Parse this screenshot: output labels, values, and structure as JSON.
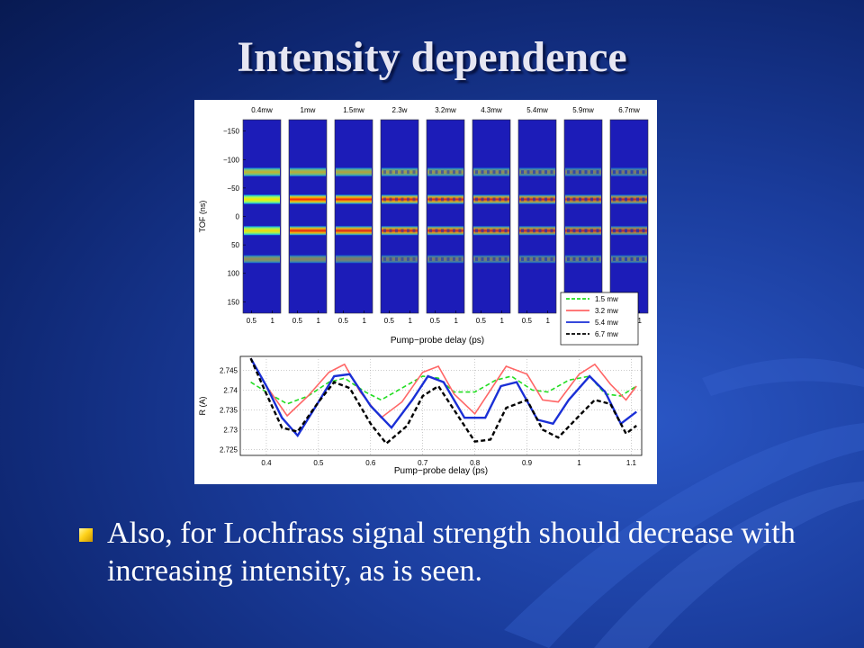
{
  "slide": {
    "title": "Intensity dependence",
    "bullet": "Also, for Lochfrass signal strength should decrease with increasing intensity, as is seen."
  },
  "colors": {
    "background": "#1a3c9c",
    "title_text": "#e6e6f2",
    "bullet_marker": "#ffd21a"
  },
  "chart_data": [
    {
      "type": "heatmap",
      "panel_labels": [
        "0.4mw",
        "1mw",
        "1.5mw",
        "2.3w",
        "3.2mw",
        "4.3mw",
        "5.4mw",
        "5.9mw",
        "6.7mw"
      ],
      "ylabel": "TOF (ns)",
      "xlabel": "Pump−probe delay (ps)",
      "y_ticks": [
        "−150",
        "−100",
        "−50",
        "0",
        "50",
        "100",
        "150"
      ],
      "y_tick_values": [
        -150,
        -100,
        -50,
        0,
        50,
        100,
        150
      ],
      "ylim": [
        -170,
        170
      ],
      "x_ticks": [
        "0.5",
        "1"
      ],
      "x_tick_values": [
        0.5,
        1
      ],
      "xlim": [
        0.3,
        1.2
      ],
      "bands": [
        {
          "tof": -78,
          "strength": 0.75
        },
        {
          "tof": -30,
          "strength": 1.0
        },
        {
          "tof": 25,
          "strength": 0.95
        },
        {
          "tof": 75,
          "strength": 0.55
        }
      ]
    },
    {
      "type": "line",
      "ylabel": "R (A)",
      "xlabel": "Pump−probe delay (ps)",
      "x_ticks": [
        "0.4",
        "0.5",
        "0.6",
        "0.7",
        "0.8",
        "0.9",
        "1",
        "1.1"
      ],
      "x_tick_values": [
        0.4,
        0.5,
        0.6,
        0.7,
        0.8,
        0.9,
        1.0,
        1.1
      ],
      "y_ticks": [
        "2.745",
        "2.74",
        "2.735",
        "2.73",
        "2.725"
      ],
      "y_tick_values": [
        2.745,
        2.74,
        2.735,
        2.73,
        2.725
      ],
      "xlim": [
        0.35,
        1.12
      ],
      "ylim": [
        2.7235,
        2.7485
      ],
      "grid": true,
      "legend": "top-right",
      "series": [
        {
          "name": "1.5 mw",
          "color": "#22dd22",
          "style": "dashed",
          "x": [
            0.37,
            0.4,
            0.44,
            0.48,
            0.52,
            0.55,
            0.59,
            0.62,
            0.66,
            0.7,
            0.73,
            0.76,
            0.8,
            0.84,
            0.87,
            0.91,
            0.94,
            0.98,
            1.02,
            1.05,
            1.08,
            1.11
          ],
          "y": [
            2.742,
            2.7395,
            2.7365,
            2.7385,
            2.742,
            2.743,
            2.7395,
            2.7375,
            2.7405,
            2.7435,
            2.743,
            2.7395,
            2.7395,
            2.7425,
            2.7435,
            2.74,
            2.7395,
            2.7425,
            2.7435,
            2.739,
            2.7385,
            2.741
          ]
        },
        {
          "name": "3.2 mw",
          "color": "#ff6666",
          "style": "solid",
          "x": [
            0.37,
            0.4,
            0.44,
            0.48,
            0.52,
            0.55,
            0.58,
            0.62,
            0.66,
            0.7,
            0.73,
            0.76,
            0.8,
            0.83,
            0.86,
            0.9,
            0.93,
            0.96,
            1.0,
            1.03,
            1.06,
            1.09,
            1.11
          ],
          "y": [
            2.748,
            2.741,
            2.7335,
            2.7385,
            2.7445,
            2.7465,
            2.7395,
            2.733,
            2.737,
            2.7445,
            2.746,
            2.739,
            2.734,
            2.74,
            2.746,
            2.744,
            2.7375,
            2.737,
            2.744,
            2.7465,
            2.7415,
            2.7375,
            2.741
          ]
        },
        {
          "name": "5.4 mw",
          "color": "#1a2fd6",
          "style": "solid",
          "x": [
            0.37,
            0.4,
            0.43,
            0.46,
            0.5,
            0.53,
            0.56,
            0.6,
            0.64,
            0.68,
            0.71,
            0.74,
            0.78,
            0.82,
            0.85,
            0.88,
            0.92,
            0.95,
            0.98,
            1.02,
            1.05,
            1.08,
            1.11
          ],
          "y": [
            2.748,
            2.741,
            2.733,
            2.7285,
            2.737,
            2.7435,
            2.744,
            2.736,
            2.7305,
            2.7375,
            2.7435,
            2.742,
            2.733,
            2.733,
            2.741,
            2.742,
            2.7325,
            2.7315,
            2.7375,
            2.7435,
            2.7395,
            2.7315,
            2.7345
          ]
        },
        {
          "name": "6.7 mw",
          "color": "#000000",
          "style": "dashed",
          "x": [
            0.37,
            0.4,
            0.43,
            0.46,
            0.5,
            0.53,
            0.56,
            0.6,
            0.63,
            0.67,
            0.7,
            0.73,
            0.76,
            0.8,
            0.83,
            0.86,
            0.9,
            0.93,
            0.96,
            1.0,
            1.03,
            1.06,
            1.09,
            1.11
          ],
          "y": [
            2.748,
            2.739,
            2.7305,
            2.7295,
            2.737,
            2.742,
            2.7405,
            2.7315,
            2.7265,
            2.731,
            2.7385,
            2.741,
            2.735,
            2.727,
            2.7275,
            2.7355,
            2.7375,
            2.73,
            2.728,
            2.7335,
            2.7375,
            2.7365,
            2.729,
            2.731
          ]
        }
      ]
    }
  ]
}
